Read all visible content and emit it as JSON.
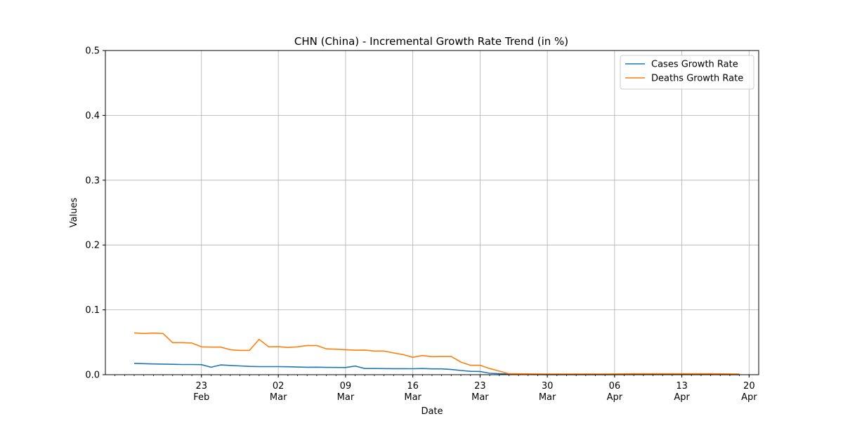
{
  "chart_data": {
    "type": "line",
    "title": "CHN (China) - Incremental Growth Rate Trend (in %)",
    "xlabel": "Date",
    "ylabel": "Values",
    "ylim": [
      0,
      0.5
    ],
    "xlim": [
      "2020-02-13",
      "2020-04-21"
    ],
    "yticks": [
      0.0,
      0.1,
      0.2,
      0.3,
      0.4,
      0.5
    ],
    "ytick_labels": [
      "0.0",
      "0.1",
      "0.2",
      "0.3",
      "0.4",
      "0.5"
    ],
    "xticks": [
      {
        "date": "2020-02-23",
        "day": "23",
        "month": "Feb"
      },
      {
        "date": "2020-03-02",
        "day": "02",
        "month": "Mar"
      },
      {
        "date": "2020-03-09",
        "day": "09",
        "month": "Mar"
      },
      {
        "date": "2020-03-16",
        "day": "16",
        "month": "Mar"
      },
      {
        "date": "2020-03-23",
        "day": "23",
        "month": "Mar"
      },
      {
        "date": "2020-03-30",
        "day": "30",
        "month": "Mar"
      },
      {
        "date": "2020-04-06",
        "day": "06",
        "month": "Apr"
      },
      {
        "date": "2020-04-13",
        "day": "13",
        "month": "Apr"
      },
      {
        "date": "2020-04-20",
        "day": "20",
        "month": "Apr"
      }
    ],
    "grid": true,
    "legend_position": "top-right",
    "series": [
      {
        "name": "Cases Growth Rate",
        "color": "#1f77b4",
        "points": [
          [
            "2020-02-16",
            0.0175
          ],
          [
            "2020-02-17",
            0.017
          ],
          [
            "2020-02-18",
            0.0166
          ],
          [
            "2020-02-19",
            0.0163
          ],
          [
            "2020-02-20",
            0.016
          ],
          [
            "2020-02-21",
            0.0157
          ],
          [
            "2020-02-22",
            0.0157
          ],
          [
            "2020-02-23",
            0.0155
          ],
          [
            "2020-02-24",
            0.0115
          ],
          [
            "2020-02-25",
            0.015
          ],
          [
            "2020-02-26",
            0.0143
          ],
          [
            "2020-02-27",
            0.0135
          ],
          [
            "2020-02-28",
            0.0128
          ],
          [
            "2020-02-29",
            0.0125
          ],
          [
            "2020-03-01",
            0.0125
          ],
          [
            "2020-03-02",
            0.0124
          ],
          [
            "2020-03-03",
            0.0122
          ],
          [
            "2020-03-04",
            0.0118
          ],
          [
            "2020-03-05",
            0.0115
          ],
          [
            "2020-03-06",
            0.0116
          ],
          [
            "2020-03-07",
            0.0113
          ],
          [
            "2020-03-08",
            0.0112
          ],
          [
            "2020-03-09",
            0.011
          ],
          [
            "2020-03-10",
            0.0133
          ],
          [
            "2020-03-11",
            0.0095
          ],
          [
            "2020-03-12",
            0.0095
          ],
          [
            "2020-03-13",
            0.0094
          ],
          [
            "2020-03-14",
            0.0093
          ],
          [
            "2020-03-15",
            0.0093
          ],
          [
            "2020-03-16",
            0.0092
          ],
          [
            "2020-03-17",
            0.0095
          ],
          [
            "2020-03-18",
            0.009
          ],
          [
            "2020-03-19",
            0.009
          ],
          [
            "2020-03-20",
            0.008
          ],
          [
            "2020-03-21",
            0.0065
          ],
          [
            "2020-03-22",
            0.0052
          ],
          [
            "2020-03-23",
            0.005
          ],
          [
            "2020-03-24",
            0.0022
          ],
          [
            "2020-03-25",
            0.0015
          ],
          [
            "2020-03-26",
            0.001
          ],
          [
            "2020-03-27",
            0.0006
          ],
          [
            "2020-03-28",
            0.0003
          ],
          [
            "2020-03-29",
            0.0002
          ],
          [
            "2020-03-30",
            0.0001
          ],
          [
            "2020-04-05",
            0.0001
          ],
          [
            "2020-04-10",
            0.0002
          ],
          [
            "2020-04-15",
            0.0002
          ],
          [
            "2020-04-19",
            0.0001
          ]
        ]
      },
      {
        "name": "Deaths Growth Rate",
        "color": "#ff7f0e",
        "points": [
          [
            "2020-02-16",
            0.0645
          ],
          [
            "2020-02-17",
            0.0635
          ],
          [
            "2020-02-18",
            0.0642
          ],
          [
            "2020-02-19",
            0.0635
          ],
          [
            "2020-02-20",
            0.0495
          ],
          [
            "2020-02-21",
            0.0495
          ],
          [
            "2020-02-22",
            0.0488
          ],
          [
            "2020-02-23",
            0.043
          ],
          [
            "2020-02-24",
            0.0425
          ],
          [
            "2020-02-25",
            0.0425
          ],
          [
            "2020-02-26",
            0.0385
          ],
          [
            "2020-02-27",
            0.0375
          ],
          [
            "2020-02-28",
            0.0375
          ],
          [
            "2020-02-29",
            0.0545
          ],
          [
            "2020-03-01",
            0.043
          ],
          [
            "2020-03-02",
            0.0432
          ],
          [
            "2020-03-03",
            0.042
          ],
          [
            "2020-03-04",
            0.043
          ],
          [
            "2020-03-05",
            0.045
          ],
          [
            "2020-03-06",
            0.045
          ],
          [
            "2020-03-07",
            0.0398
          ],
          [
            "2020-03-08",
            0.0393
          ],
          [
            "2020-03-09",
            0.0385
          ],
          [
            "2020-03-10",
            0.0378
          ],
          [
            "2020-03-11",
            0.038
          ],
          [
            "2020-03-12",
            0.0365
          ],
          [
            "2020-03-13",
            0.0365
          ],
          [
            "2020-03-14",
            0.0335
          ],
          [
            "2020-03-15",
            0.031
          ],
          [
            "2020-03-16",
            0.0268
          ],
          [
            "2020-03-17",
            0.0295
          ],
          [
            "2020-03-18",
            0.0278
          ],
          [
            "2020-03-19",
            0.028
          ],
          [
            "2020-03-20",
            0.028
          ],
          [
            "2020-03-21",
            0.0195
          ],
          [
            "2020-03-22",
            0.0145
          ],
          [
            "2020-03-23",
            0.0145
          ],
          [
            "2020-03-24",
            0.0095
          ],
          [
            "2020-03-25",
            0.0055
          ],
          [
            "2020-03-26",
            0.0015
          ],
          [
            "2020-03-30",
            0.001
          ],
          [
            "2020-04-05",
            0.001
          ],
          [
            "2020-04-08",
            0.0015
          ],
          [
            "2020-04-12",
            0.0015
          ],
          [
            "2020-04-16",
            0.0015
          ],
          [
            "2020-04-19",
            0.001
          ]
        ]
      }
    ]
  }
}
